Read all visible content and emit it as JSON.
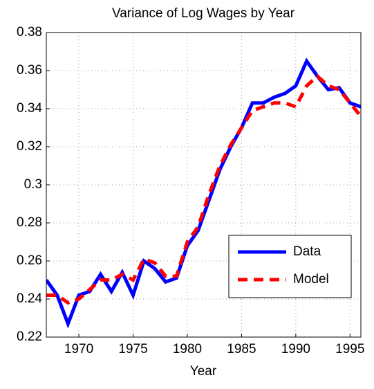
{
  "chart_data": {
    "type": "line",
    "title": "Variance of Log Wages by Year",
    "x_label": "Year",
    "x": [
      1967,
      1968,
      1969,
      1970,
      1971,
      1972,
      1973,
      1974,
      1975,
      1976,
      1977,
      1978,
      1979,
      1980,
      1981,
      1982,
      1983,
      1984,
      1985,
      1986,
      1987,
      1988,
      1989,
      1990,
      1991,
      1992,
      1993,
      1994,
      1995,
      1996
    ],
    "series": [
      {
        "name": "Data",
        "color": "#0000ff",
        "dash": false,
        "values": [
          0.25,
          0.242,
          0.227,
          0.242,
          0.244,
          0.253,
          0.244,
          0.254,
          0.242,
          0.26,
          0.256,
          0.249,
          0.251,
          0.268,
          0.276,
          0.292,
          0.308,
          0.32,
          0.33,
          0.343,
          0.343,
          0.346,
          0.348,
          0.352,
          0.365,
          0.357,
          0.35,
          0.351,
          0.343,
          0.341
        ]
      },
      {
        "name": "Model",
        "color": "#ff0000",
        "dash": true,
        "values": [
          0.242,
          0.242,
          0.238,
          0.24,
          0.245,
          0.25,
          0.25,
          0.253,
          0.25,
          0.261,
          0.259,
          0.252,
          0.252,
          0.27,
          0.278,
          0.295,
          0.31,
          0.321,
          0.33,
          0.339,
          0.341,
          0.343,
          0.343,
          0.341,
          0.352,
          0.357,
          0.352,
          0.35,
          0.343,
          0.336
        ]
      }
    ],
    "xlim": [
      1967,
      1996
    ],
    "xticks": [
      1970,
      1975,
      1980,
      1985,
      1990,
      1995
    ],
    "ylim": [
      0.22,
      0.38
    ],
    "yticks": [
      0.22,
      0.24,
      0.26,
      0.28,
      0.3,
      0.32,
      0.34,
      0.36,
      0.38
    ],
    "grid": true,
    "legend": "lower-right"
  }
}
